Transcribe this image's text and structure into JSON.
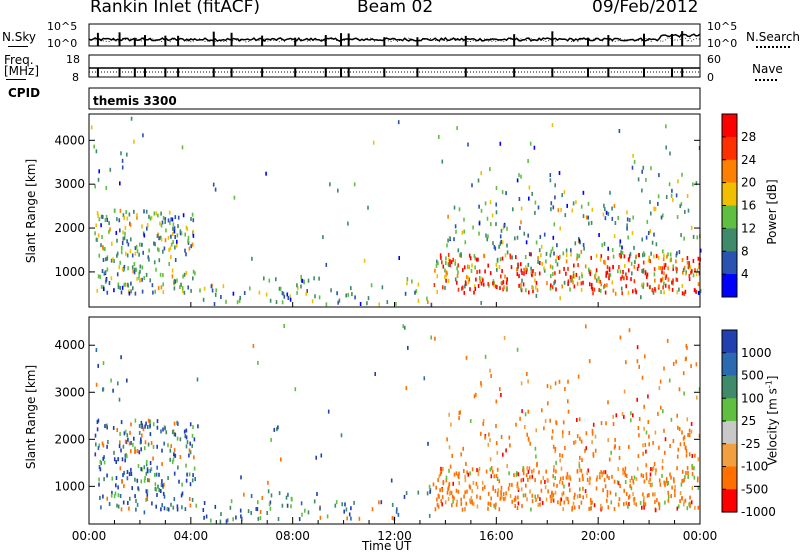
{
  "header": {
    "station": "Rankin Inlet (fitACF)",
    "beam": "Beam 02",
    "date": "09/Feb/2012"
  },
  "nsky_panel": {
    "left_label": "N.Sky",
    "right_label": "N.Search",
    "left_ticks": [
      "10^5",
      "10^0"
    ],
    "right_ticks": [
      "10^5",
      "10^0"
    ]
  },
  "freq_panel": {
    "left_label": "Freq.",
    "unit_label": "[MHz]",
    "right_label": "Nave",
    "left_ticks": [
      "18",
      "8"
    ],
    "right_ticks": [
      "60",
      "0"
    ]
  },
  "cpid_label": "CPID",
  "cpid_value": "themis 3300",
  "chart_data": [
    {
      "type": "heatmap",
      "name": "power",
      "ylabel": "Slant Range [km]",
      "yticks": [
        "1000",
        "2000",
        "3000",
        "4000"
      ],
      "ylim": [
        200,
        4600
      ],
      "xlim_hours": [
        0,
        24
      ],
      "colorbar_label": "Power [dB]",
      "colorbar_ticks": [
        "4",
        "8",
        "12",
        "16",
        "20",
        "24",
        "28"
      ],
      "colors": [
        "#0000ff",
        "#2a52b0",
        "#3f8a6a",
        "#5fbf40",
        "#f0c000",
        "#ff8000",
        "#ff3000",
        "#ff0000"
      ]
    },
    {
      "type": "heatmap",
      "name": "velocity",
      "ylabel": "Slant Range [km]",
      "yticks": [
        "1000",
        "2000",
        "3000",
        "4000"
      ],
      "ylim": [
        200,
        4600
      ],
      "xlim_hours": [
        0,
        24
      ],
      "colorbar_label": "Velocity [m s",
      "colorbar_label_exp": "-1",
      "colorbar_label_end": "]",
      "colorbar_ticks": [
        "1000",
        "500",
        "100",
        "25",
        "-25",
        "-100",
        "-500",
        "-1000"
      ],
      "colors": [
        "#2040b0",
        "#2a6ab0",
        "#3f8a6a",
        "#5fbf40",
        "#c8c8c8",
        "#f0a040",
        "#ff7000",
        "#ff0000"
      ]
    }
  ],
  "x_axis": {
    "ticks": [
      "00:00",
      "04:00",
      "08:00",
      "12:00",
      "16:00",
      "20:00",
      "00:00"
    ],
    "label": "Time UT"
  }
}
